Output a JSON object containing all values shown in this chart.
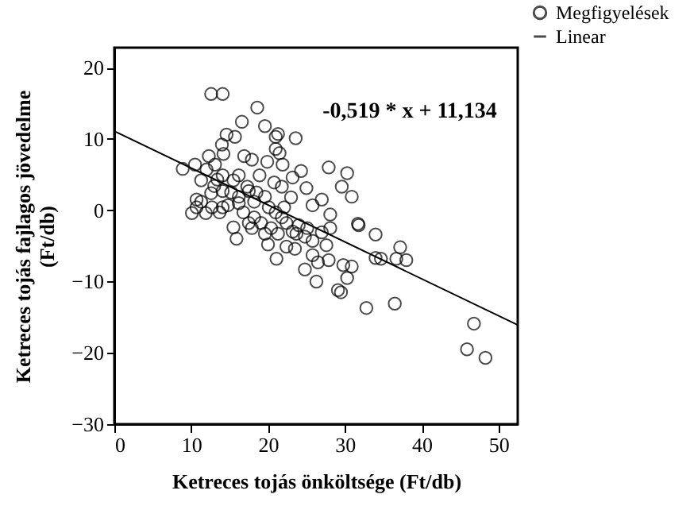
{
  "chart_data": {
    "type": "scatter",
    "xlabel": "Ketreces tojás önköltsége (Ft/db)",
    "ylabel": "Ketreces tojás fajlagos jövedelme\n(Ft/db)",
    "xlim": [
      0,
      52.5
    ],
    "ylim": [
      -30,
      22.8
    ],
    "xticks": [
      0,
      10,
      20,
      30,
      40,
      50
    ],
    "yticks": [
      -30,
      -20,
      -10,
      0,
      10,
      20
    ],
    "grid": false,
    "legend": "top right",
    "annotations": [
      "-0,519 * x + 11,134"
    ],
    "series": [
      {
        "name": "Megfigyelések",
        "marker": "circle",
        "color": "#000000",
        "x": [
          12.6,
          14.1,
          18.6,
          16.6,
          19.6,
          21.3,
          21.0,
          14.6,
          15.7,
          23.6,
          14.0,
          21.0,
          21.5,
          14.2,
          16.9,
          17.9,
          12.3,
          19.9,
          10.5,
          8.9,
          21.9,
          13.1,
          27.9,
          24.3,
          30.3,
          23.2,
          18.9,
          16.2,
          11.3,
          13.4,
          20.8,
          21.8,
          29.6,
          25.0,
          17.3,
          30.9,
          27.0,
          23.0,
          18.5,
          15.2,
          12.6,
          10.7,
          25.8,
          28.1,
          10.1,
          11.9,
          14.1,
          16.2,
          20.1,
          31.7,
          31.8,
          21.8,
          15.5,
          17.9,
          24.0,
          28.1,
          15.9,
          20.0,
          24.8,
          27.0,
          34.0,
          22.4,
          23.5,
          25.8,
          27.6,
          34.0,
          34.7,
          37.2,
          36.7,
          38.0,
          21.1,
          25.8,
          24.8,
          26.5,
          27.9,
          29.8,
          30.9,
          26.3,
          30.3,
          29.1,
          29.5,
          32.8,
          36.5,
          46.8,
          45.9,
          48.3,
          11.3,
          12.7,
          13.7,
          14.8,
          16.8,
          18.2,
          19.1,
          20.4,
          21.3,
          22.4,
          23.2,
          23.7,
          25.1,
          19.6,
          17.5,
          15.5,
          14.1,
          12.0,
          13.0,
          10.7,
          18.2,
          21.0,
          22.1,
          19.6,
          17.5,
          14.1,
          16.2
        ],
        "values": [
          16.3,
          16.3,
          14.4,
          12.4,
          11.8,
          10.7,
          10.3,
          10.6,
          10.3,
          10.1,
          9.2,
          8.6,
          8.0,
          7.9,
          7.6,
          7.1,
          7.6,
          6.8,
          6.4,
          5.8,
          6.4,
          6.4,
          6.0,
          5.5,
          5.2,
          4.6,
          4.9,
          4.9,
          4.2,
          4.3,
          3.9,
          3.3,
          3.3,
          3.1,
          3.3,
          1.9,
          1.5,
          1.8,
          2.5,
          2.5,
          2.4,
          1.5,
          0.7,
          -0.6,
          -0.4,
          -0.4,
          0.4,
          1.0,
          0.4,
          -1.9,
          -2.1,
          -1.0,
          -2.4,
          -2.5,
          -2.1,
          -2.5,
          -4.0,
          -4.8,
          -3.7,
          -3.1,
          -3.4,
          -5.1,
          -5.4,
          -4.3,
          -4.9,
          -6.7,
          -6.8,
          -5.2,
          -6.8,
          -7.0,
          -6.8,
          -6.3,
          -8.3,
          -7.3,
          -7.0,
          -7.7,
          -7.9,
          -10.0,
          -9.5,
          -11.2,
          -11.5,
          -13.7,
          -13.1,
          -15.9,
          -19.5,
          -20.7,
          1.2,
          0.4,
          -0.3,
          0.7,
          -0.3,
          -1.0,
          -1.8,
          -2.5,
          -3.3,
          -1.8,
          -3.0,
          -3.3,
          -2.5,
          1.9,
          2.7,
          4.2,
          4.9,
          5.7,
          3.4,
          0.4,
          1.2,
          -0.3,
          0.4,
          -3.3,
          -1.8,
          2.7,
          1.9
        ]
      },
      {
        "name": "Linear",
        "type": "line",
        "marker": "none",
        "color": "#000000",
        "x": [
          0,
          52.5
        ],
        "values": [
          11.1,
          -16.1
        ]
      }
    ]
  }
}
